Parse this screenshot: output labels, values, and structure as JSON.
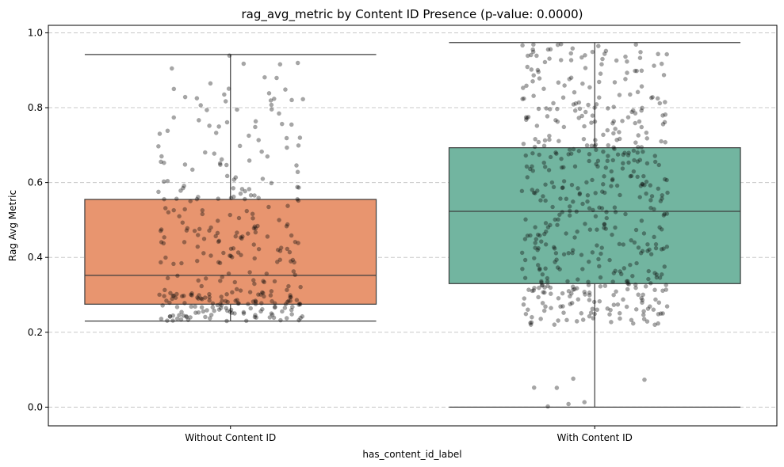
{
  "chart_data": {
    "type": "box",
    "title": "rag_avg_metric by Content ID Presence (p-value: 0.0000)",
    "xlabel": "has_content_id_label",
    "ylabel": "Rag Avg Metric",
    "ylim": [
      -0.05,
      1.02
    ],
    "yticks": [
      "0.0",
      "0.2",
      "0.4",
      "0.6",
      "0.8",
      "1.0"
    ],
    "grid": "y-dashed",
    "categories": [
      "Without Content ID",
      "With Content ID"
    ],
    "boxes": [
      {
        "name": "Without Content ID",
        "color": "#E8956F",
        "whisker_low": 0.23,
        "q1": 0.275,
        "median": 0.352,
        "q3": 0.555,
        "whisker_high": 0.942
      },
      {
        "name": "With Content ID",
        "color": "#72B5A0",
        "whisker_low": 0.0,
        "q1": 0.33,
        "median": 0.523,
        "q3": 0.693,
        "whisker_high": 0.974
      }
    ],
    "points_color": "#000000",
    "points_alpha": 0.35
  }
}
